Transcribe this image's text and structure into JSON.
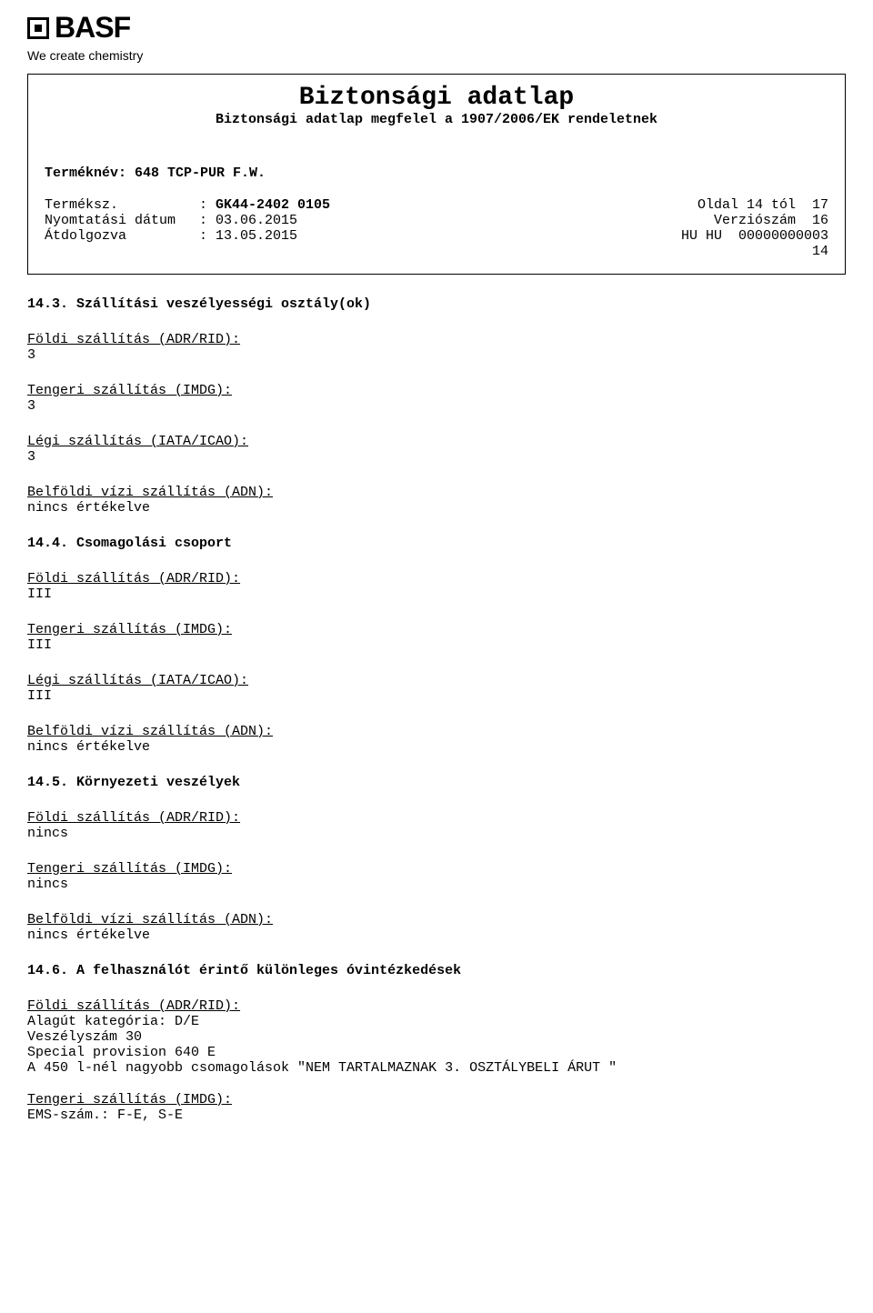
{
  "brand": {
    "name": "BASF",
    "tagline": "We create chemistry"
  },
  "header": {
    "title_main": "Biztonsági adatlap",
    "title_sub": "Biztonsági adatlap megfelel a 1907/2006/EK rendeletnek",
    "product_name_label": "Terméknév:",
    "product_name_value": "648 TCP-PUR F.W.",
    "rows": [
      {
        "label": "Terméksz.",
        "value": "GK44-2402 0105",
        "right": "Oldal 14 tól  17"
      },
      {
        "label": "Nyomtatási dátum",
        "value": "03.06.2015",
        "right": "Verziószám  16"
      },
      {
        "label": "Átdolgozva",
        "value": "13.05.2015",
        "right": "HU HU  00000000003"
      }
    ],
    "trailing_right": "14"
  },
  "sections": {
    "s143": {
      "heading": "14.3. Szállítási veszélyességi osztály(ok)",
      "blocks": [
        {
          "label": "Földi szállítás (ADR/RID):",
          "value": "3"
        },
        {
          "label": "Tengeri szállítás (IMDG):",
          "value": "3"
        },
        {
          "label": "Légi szállítás (IATA/ICAO):",
          "value": "3"
        },
        {
          "label": "Belföldi vízi szállítás (ADN):",
          "value": "nincs értékelve"
        }
      ]
    },
    "s144": {
      "heading": "14.4. Csomagolási csoport",
      "blocks": [
        {
          "label": "Földi szállítás (ADR/RID):",
          "value": "III"
        },
        {
          "label": "Tengeri szállítás (IMDG):",
          "value": "III"
        },
        {
          "label": "Légi szállítás (IATA/ICAO):",
          "value": "III"
        },
        {
          "label": "Belföldi vízi szállítás (ADN):",
          "value": "nincs értékelve"
        }
      ]
    },
    "s145": {
      "heading": "14.5. Környezeti veszélyek",
      "blocks": [
        {
          "label": "Földi szállítás (ADR/RID):",
          "value": "nincs"
        },
        {
          "label": "Tengeri szállítás (IMDG):",
          "value": "nincs"
        },
        {
          "label": "Belföldi vízi szállítás (ADN):",
          "value": "nincs értékelve"
        }
      ]
    },
    "s146": {
      "heading": "14.6. A felhasználót érintő különleges óvintézkedések",
      "adr_label": "Földi szállítás (ADR/RID):",
      "adr_lines": [
        "Alagút kategória: D/E",
        "Veszélyszám 30",
        "Special provision 640 E",
        "A 450 l-nél nagyobb csomagolások \"NEM TARTALMAZNAK 3. OSZTÁLYBELI ÁRUT \""
      ],
      "imdg_label": "Tengeri szállítás (IMDG):",
      "imdg_line": "EMS-szám.: F-E, S-E"
    }
  }
}
